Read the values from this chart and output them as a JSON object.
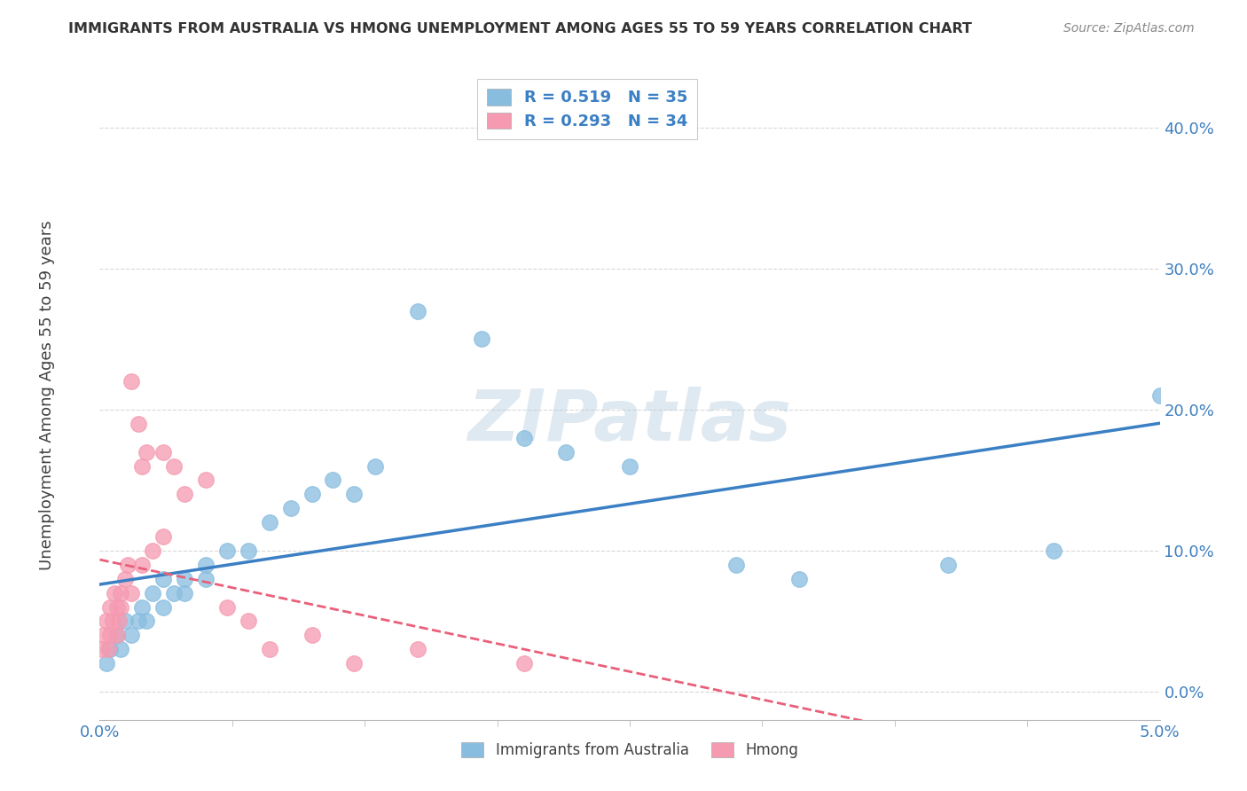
{
  "title": "IMMIGRANTS FROM AUSTRALIA VS HMONG UNEMPLOYMENT AMONG AGES 55 TO 59 YEARS CORRELATION CHART",
  "source": "Source: ZipAtlas.com",
  "ylabel": "Unemployment Among Ages 55 to 59 years",
  "ytick_labels": [
    "0.0%",
    "10.0%",
    "20.0%",
    "30.0%",
    "40.0%"
  ],
  "ytick_values": [
    0.0,
    0.1,
    0.2,
    0.3,
    0.4
  ],
  "xlim": [
    0.0,
    0.05
  ],
  "ylim": [
    -0.02,
    0.44
  ],
  "australia_color": "#89bde0",
  "hmong_color": "#f59ab0",
  "australia_line_color": "#3b7fc4",
  "hmong_line_color": "#e8607a",
  "title_color": "#333333",
  "source_color": "#888888",
  "background_color": "#ffffff",
  "grid_color": "#d8d8d8",
  "watermark_text": "ZIPatlas",
  "legend_label_aus": "R = 0.519   N = 35",
  "legend_label_hmong": "R = 0.293   N = 34",
  "legend_text_color": "#3b7fc4",
  "bottom_legend_aus": "Immigrants from Australia",
  "bottom_legend_hmong": "Hmong",
  "aus_x": [
    0.0003,
    0.0005,
    0.0008,
    0.001,
    0.0012,
    0.0015,
    0.0018,
    0.002,
    0.0022,
    0.0025,
    0.003,
    0.003,
    0.0035,
    0.004,
    0.004,
    0.005,
    0.005,
    0.006,
    0.007,
    0.008,
    0.009,
    0.01,
    0.011,
    0.012,
    0.013,
    0.015,
    0.018,
    0.02,
    0.022,
    0.025,
    0.03,
    0.033,
    0.04,
    0.045,
    0.05
  ],
  "aus_y": [
    0.02,
    0.03,
    0.04,
    0.03,
    0.05,
    0.04,
    0.05,
    0.06,
    0.05,
    0.07,
    0.06,
    0.08,
    0.07,
    0.08,
    0.07,
    0.08,
    0.09,
    0.1,
    0.1,
    0.12,
    0.13,
    0.14,
    0.15,
    0.14,
    0.16,
    0.27,
    0.25,
    0.18,
    0.17,
    0.16,
    0.09,
    0.08,
    0.09,
    0.1,
    0.21
  ],
  "hmong_x": [
    0.0001,
    0.0002,
    0.0003,
    0.0004,
    0.0005,
    0.0005,
    0.0006,
    0.0007,
    0.0008,
    0.0008,
    0.0009,
    0.001,
    0.001,
    0.0012,
    0.0013,
    0.0015,
    0.0015,
    0.0018,
    0.002,
    0.002,
    0.0022,
    0.0025,
    0.003,
    0.003,
    0.0035,
    0.004,
    0.005,
    0.006,
    0.007,
    0.008,
    0.01,
    0.012,
    0.015,
    0.02
  ],
  "hmong_y": [
    0.03,
    0.04,
    0.05,
    0.03,
    0.04,
    0.06,
    0.05,
    0.07,
    0.04,
    0.06,
    0.05,
    0.06,
    0.07,
    0.08,
    0.09,
    0.07,
    0.22,
    0.19,
    0.09,
    0.16,
    0.17,
    0.1,
    0.11,
    0.17,
    0.16,
    0.14,
    0.15,
    0.06,
    0.05,
    0.03,
    0.04,
    0.02,
    0.03,
    0.02
  ]
}
